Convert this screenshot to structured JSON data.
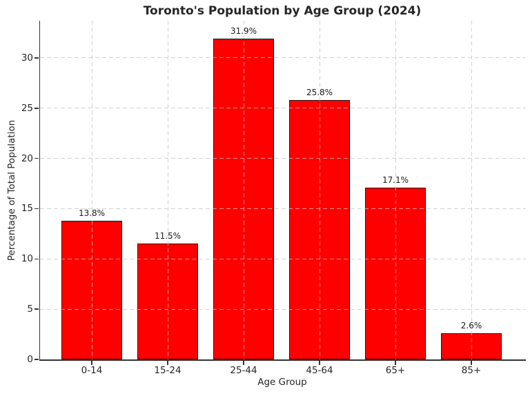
{
  "chart_data": {
    "type": "bar",
    "title": "Toronto's Population by Age Group (2024)",
    "xlabel": "Age Group",
    "ylabel": "Percentage of Total Population",
    "categories": [
      "0-14",
      "15-24",
      "25-44",
      "45-64",
      "65+",
      "85+"
    ],
    "values": [
      13.8,
      11.5,
      31.9,
      25.8,
      17.1,
      2.6
    ],
    "bar_labels": [
      "13.8%",
      "11.5%",
      "31.9%",
      "25.8%",
      "17.1%",
      "2.6%"
    ],
    "yticks": [
      0,
      5,
      10,
      15,
      20,
      25,
      30
    ],
    "ylim": [
      0,
      33.7
    ],
    "grid": true,
    "grid_style": "dashed",
    "legend_position": "none",
    "colors": {
      "bar_fill": "#ff0000",
      "bar_edge": "#1a1a1a",
      "grid": "#c3c3c3",
      "text": "#262626",
      "spine": "#333333",
      "background": "#ffffff"
    }
  }
}
